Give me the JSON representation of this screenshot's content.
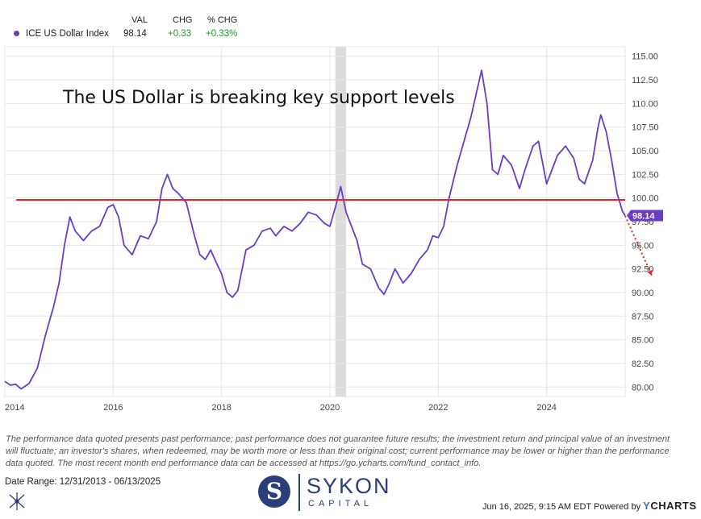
{
  "legend": {
    "col_val": "VAL",
    "col_chg": "CHG",
    "col_pchg": "% CHG",
    "series_name": "ICE US Dollar Index",
    "val": "98.14",
    "chg": "+0.33",
    "pchg": "+0.33%"
  },
  "colors": {
    "series": "#6a3bc8",
    "support": "#e8232a",
    "forecast": "#e8232a",
    "recession": "#dcdcdc",
    "grid": "#e6e6e6"
  },
  "chart_data": {
    "type": "line",
    "annotation": "The US Dollar is breaking key support levels",
    "last_value_label": "98.14",
    "support_level": 99.8,
    "forecast_arrow": {
      "from": [
        2025.45,
        98.1
      ],
      "to": [
        2026.05,
        91.8
      ]
    },
    "recession_band": [
      2020.1,
      2020.3
    ],
    "xlim": [
      2014.0,
      2025.45
    ],
    "ylim": [
      79.0,
      116.0
    ],
    "x_ticks": [
      2014,
      2016,
      2018,
      2020,
      2022,
      2024
    ],
    "x_tick_labels": [
      "2014",
      "2016",
      "2018",
      "2020",
      "2022",
      "2024"
    ],
    "y_ticks": [
      80,
      82.5,
      85,
      87.5,
      90,
      92.5,
      95,
      97.5,
      100,
      102.5,
      105,
      107.5,
      110,
      112.5,
      115
    ],
    "y_tick_labels": [
      "80.00",
      "82.50",
      "85.00",
      "87.50",
      "90.00",
      "92.50",
      "95.00",
      "97.50",
      "100.00",
      "102.50",
      "105.00",
      "107.50",
      "110.00",
      "112.50",
      "115.00"
    ],
    "series": [
      {
        "name": "ICE US Dollar Index",
        "x": [
          2014.0,
          2014.1,
          2014.2,
          2014.3,
          2014.45,
          2014.6,
          2014.75,
          2014.9,
          2015.0,
          2015.1,
          2015.2,
          2015.3,
          2015.45,
          2015.6,
          2015.75,
          2015.9,
          2016.0,
          2016.1,
          2016.2,
          2016.35,
          2016.5,
          2016.65,
          2016.8,
          2016.9,
          2017.0,
          2017.1,
          2017.2,
          2017.35,
          2017.5,
          2017.6,
          2017.7,
          2017.8,
          2017.9,
          2018.0,
          2018.1,
          2018.2,
          2018.3,
          2018.45,
          2018.6,
          2018.75,
          2018.9,
          2019.0,
          2019.15,
          2019.3,
          2019.45,
          2019.6,
          2019.75,
          2019.9,
          2020.0,
          2020.1,
          2020.2,
          2020.3,
          2020.4,
          2020.5,
          2020.6,
          2020.75,
          2020.9,
          2021.0,
          2021.1,
          2021.2,
          2021.35,
          2021.5,
          2021.65,
          2021.8,
          2021.9,
          2022.0,
          2022.1,
          2022.2,
          2022.35,
          2022.5,
          2022.6,
          2022.7,
          2022.8,
          2022.9,
          2023.0,
          2023.1,
          2023.2,
          2023.35,
          2023.5,
          2023.6,
          2023.75,
          2023.85,
          2024.0,
          2024.1,
          2024.2,
          2024.35,
          2024.5,
          2024.6,
          2024.7,
          2024.85,
          2024.95,
          2025.0,
          2025.1,
          2025.2,
          2025.3,
          2025.4,
          2025.45
        ],
        "values": [
          80.6,
          80.2,
          80.3,
          79.8,
          80.4,
          82.0,
          85.5,
          88.5,
          91.0,
          95.0,
          98.0,
          96.5,
          95.5,
          96.5,
          97.0,
          99.0,
          99.3,
          98.0,
          95.0,
          94.0,
          96.0,
          95.7,
          97.5,
          101.0,
          102.5,
          101.0,
          100.5,
          99.5,
          96.0,
          94.0,
          93.5,
          94.5,
          93.2,
          92.0,
          90.0,
          89.5,
          90.2,
          94.5,
          95.0,
          96.5,
          96.8,
          96.0,
          97.0,
          96.5,
          97.3,
          98.5,
          98.2,
          97.3,
          97.0,
          99.0,
          101.2,
          98.5,
          97.0,
          95.5,
          93.0,
          92.5,
          90.5,
          89.8,
          91.0,
          92.5,
          91.0,
          92.0,
          93.5,
          94.5,
          96.0,
          95.8,
          97.0,
          100.0,
          103.5,
          106.5,
          108.5,
          111.0,
          113.5,
          110.0,
          103.0,
          102.5,
          104.5,
          103.5,
          101.0,
          103.0,
          105.5,
          106.0,
          101.5,
          103.0,
          104.5,
          105.5,
          104.2,
          102.0,
          101.5,
          104.0,
          107.5,
          108.8,
          107.0,
          104.0,
          100.5,
          98.6,
          98.14
        ]
      }
    ]
  },
  "disclaimer": "The performance data quoted presents past performance; past performance does not guarantee future results; the investment return and principal value of an investment will fluctuate; an investor's shares, when redeemed, may be worth more or less than their original cost; current performance may be lower or higher than the performance data quoted. The most recent month end performance data can be accessed at https://go.ycharts.com/fund_contact_info.",
  "date_range": "Date Range: 12/31/2013 - 06/13/2025",
  "brand": {
    "name": "SYKON",
    "sub": "CAPITAL"
  },
  "footer": {
    "timestamp": "Jun 16, 2025, 9:15 AM EDT Powered by",
    "powered_y": "Y",
    "powered_rest": "CHARTS"
  }
}
